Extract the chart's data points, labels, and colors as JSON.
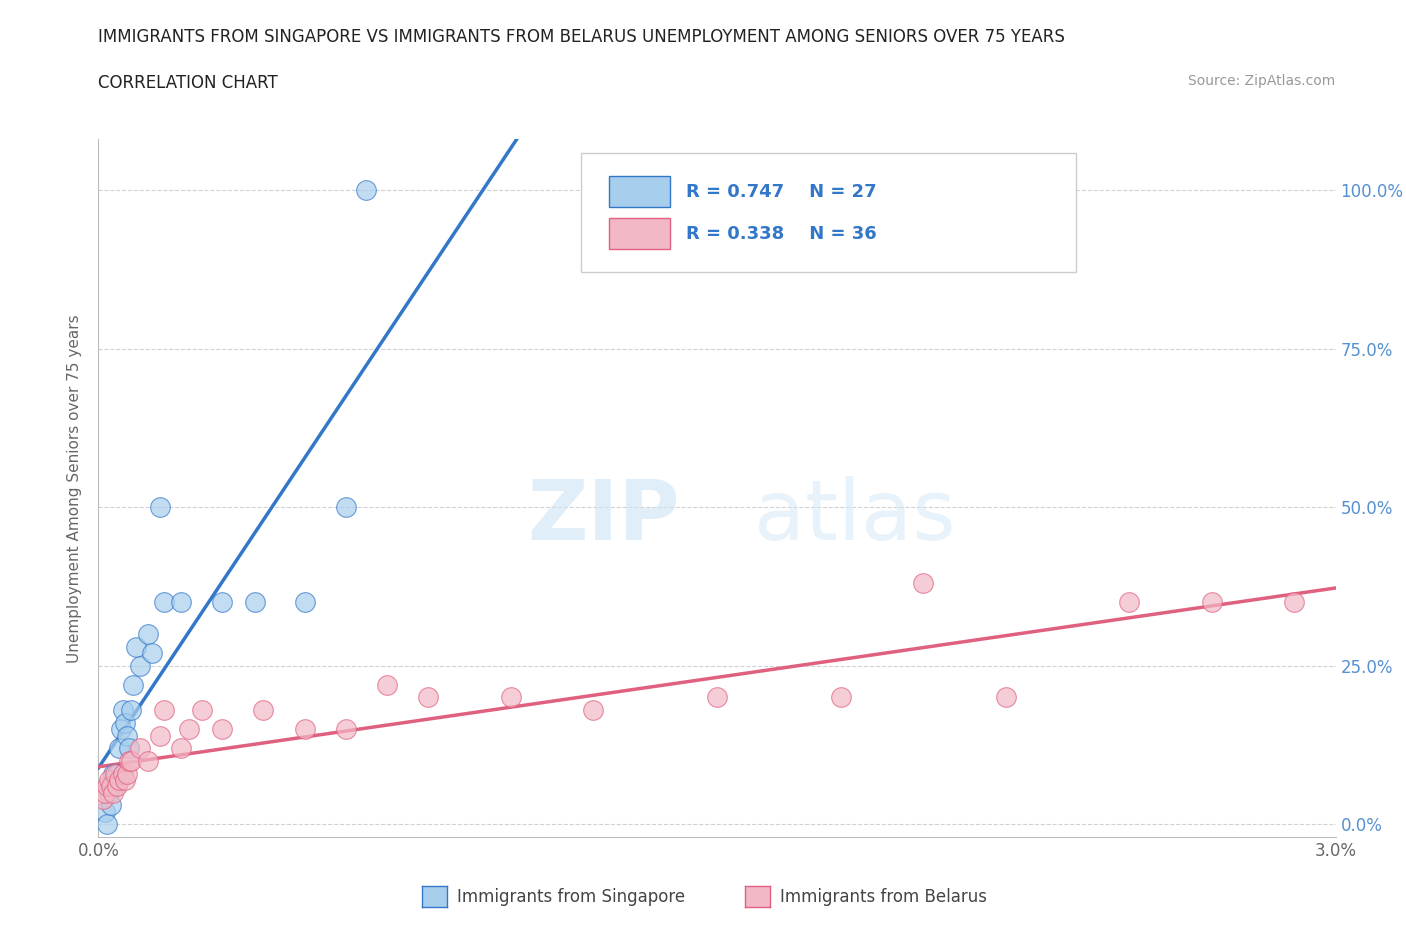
{
  "title_line1": "IMMIGRANTS FROM SINGAPORE VS IMMIGRANTS FROM BELARUS UNEMPLOYMENT AMONG SENIORS OVER 75 YEARS",
  "title_line2": "CORRELATION CHART",
  "source_text": "Source: ZipAtlas.com",
  "ylabel": "Unemployment Among Seniors over 75 years",
  "xlim": [
    0.0,
    0.03
  ],
  "ylim": [
    -0.02,
    1.08
  ],
  "x_ticks": [
    0.0,
    0.005,
    0.01,
    0.015,
    0.02,
    0.025,
    0.03
  ],
  "x_tick_labels": [
    "0.0%",
    "",
    "",
    "",
    "",
    "",
    "3.0%"
  ],
  "y_ticks": [
    0.0,
    0.25,
    0.5,
    0.75,
    1.0
  ],
  "y_tick_labels_right": [
    "0.0%",
    "25.0%",
    "50.0%",
    "75.0%",
    "100.0%"
  ],
  "watermark_zip": "ZIP",
  "watermark_atlas": "atlas",
  "color_singapore": "#A8CEED",
  "color_belarus": "#F2B8C6",
  "color_singapore_line": "#3378C8",
  "color_belarus_line": "#E06080",
  "color_y_labels": "#5590D0",
  "background_color": "#ffffff",
  "singapore_x": [
    0.00015,
    0.0002,
    0.00025,
    0.0003,
    0.00035,
    0.0004,
    0.00045,
    0.0005,
    0.00055,
    0.0006,
    0.00065,
    0.0007,
    0.00075,
    0.0008,
    0.00085,
    0.0009,
    0.001,
    0.0012,
    0.0013,
    0.0015,
    0.0016,
    0.002,
    0.003,
    0.0038,
    0.005,
    0.006,
    0.0065
  ],
  "singapore_y": [
    0.02,
    0.0,
    0.05,
    0.03,
    0.08,
    0.06,
    0.08,
    0.12,
    0.15,
    0.18,
    0.16,
    0.14,
    0.12,
    0.18,
    0.22,
    0.28,
    0.25,
    0.3,
    0.27,
    0.5,
    0.35,
    0.35,
    0.35,
    0.35,
    0.35,
    0.5,
    1.0
  ],
  "belarus_x": [
    0.0001,
    0.00015,
    0.0002,
    0.00025,
    0.0003,
    0.00035,
    0.0004,
    0.00045,
    0.0005,
    0.0006,
    0.00065,
    0.0007,
    0.00075,
    0.0008,
    0.001,
    0.0012,
    0.0015,
    0.0016,
    0.002,
    0.0022,
    0.0025,
    0.003,
    0.004,
    0.005,
    0.006,
    0.007,
    0.008,
    0.01,
    0.012,
    0.015,
    0.018,
    0.02,
    0.022,
    0.025,
    0.027,
    0.029
  ],
  "belarus_y": [
    0.04,
    0.05,
    0.06,
    0.07,
    0.06,
    0.05,
    0.08,
    0.06,
    0.07,
    0.08,
    0.07,
    0.08,
    0.1,
    0.1,
    0.12,
    0.1,
    0.14,
    0.18,
    0.12,
    0.15,
    0.18,
    0.15,
    0.18,
    0.15,
    0.15,
    0.22,
    0.2,
    0.2,
    0.18,
    0.2,
    0.2,
    0.38,
    0.2,
    0.35,
    0.35,
    0.35
  ]
}
